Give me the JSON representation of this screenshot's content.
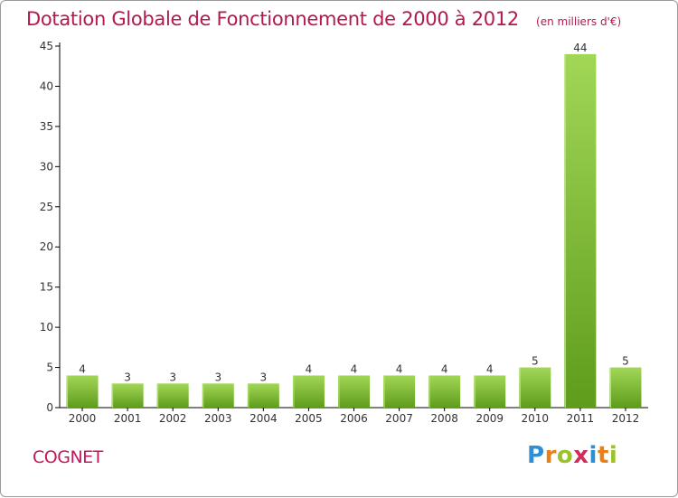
{
  "header": {
    "title": "Dotation Globale de Fonctionnement de 2000 à 2012",
    "unit": "(en milliers d'€)"
  },
  "footer": {
    "commune": "COGNET",
    "brand": [
      "P",
      "r",
      "o",
      "x",
      "i",
      "t",
      "i"
    ],
    "brand_colors": [
      "#2e8fd6",
      "#e8801a",
      "#9ac22b",
      "#d42a5c",
      "#2e8fd6",
      "#e8801a",
      "#9ac22b"
    ]
  },
  "colors": {
    "bar_light": "#a2d756",
    "bar_dark": "#5f9c1c",
    "axis": "#000000",
    "grid": "#c8c8c8"
  },
  "chart_data": {
    "type": "bar",
    "categories": [
      "2000",
      "2001",
      "2002",
      "2003",
      "2004",
      "2005",
      "2006",
      "2007",
      "2008",
      "2009",
      "2010",
      "2011",
      "2012"
    ],
    "values": [
      4,
      3,
      3,
      3,
      3,
      4,
      4,
      4,
      4,
      4,
      5,
      44,
      5
    ],
    "ylim": [
      0,
      45
    ],
    "yticks": [
      0,
      5,
      10,
      15,
      20,
      25,
      30,
      35,
      40,
      45
    ],
    "grid": false
  }
}
